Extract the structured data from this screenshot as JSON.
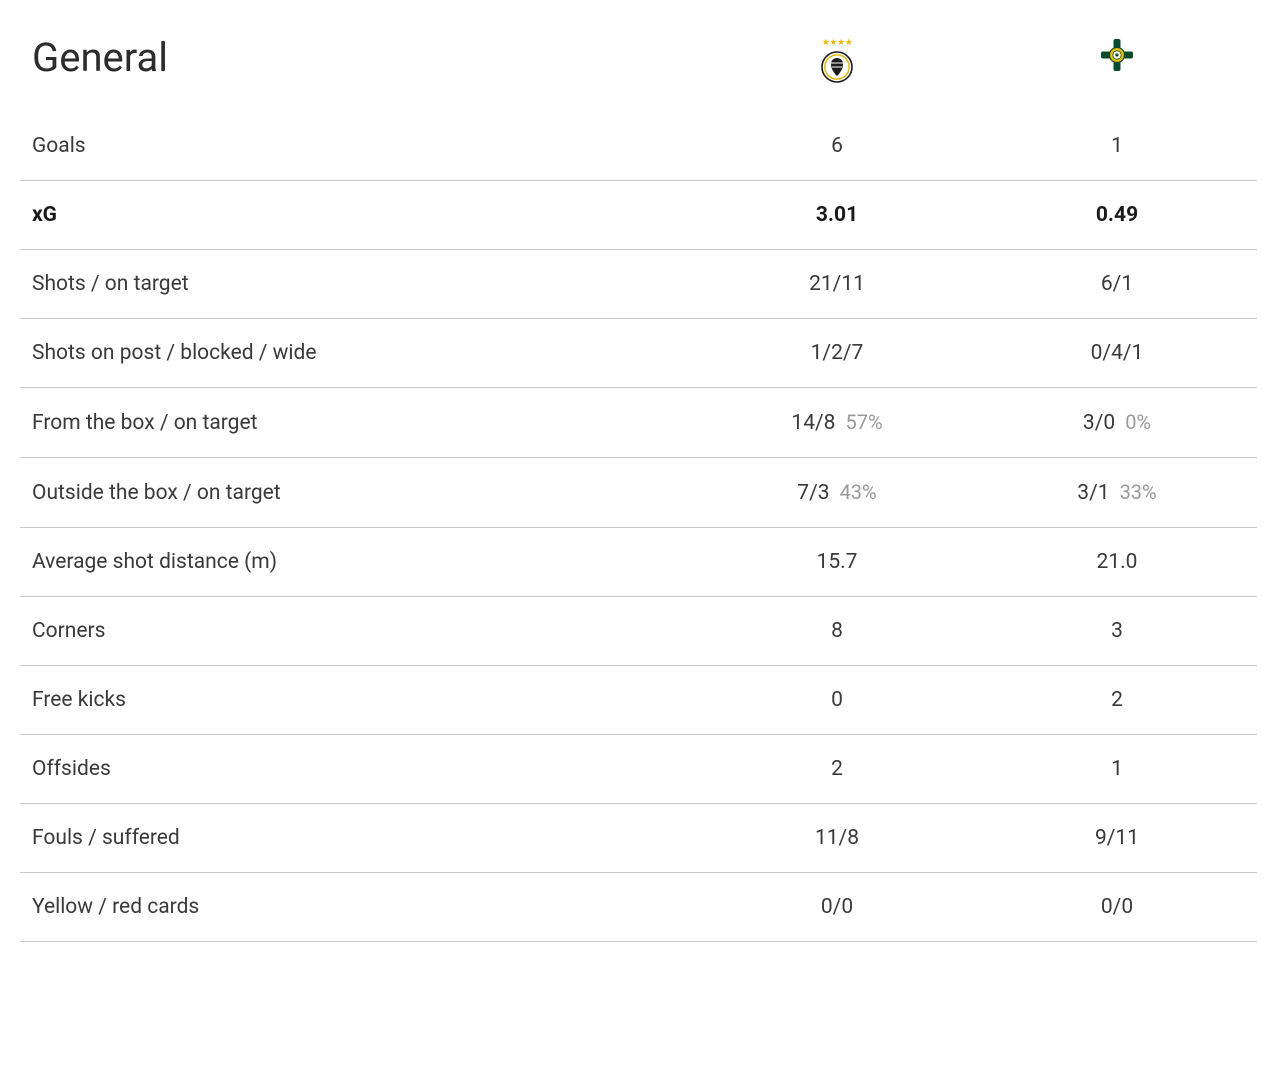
{
  "table": {
    "title": "General",
    "columns": [
      "label",
      "team1",
      "team2"
    ],
    "team1_icon": "germany-logo",
    "team2_icon": "northern-ireland-logo",
    "rows": [
      {
        "label": "Goals",
        "t1": "6",
        "t2": "1",
        "strong": false
      },
      {
        "label": "xG",
        "t1": "3.01",
        "t2": "0.49",
        "strong": true
      },
      {
        "label": "Shots / on target",
        "t1": "21/11",
        "t2": "6/1",
        "strong": false
      },
      {
        "label": "Shots on post / blocked / wide",
        "t1": "1/2/7",
        "t2": "0/4/1",
        "strong": false
      },
      {
        "label": "From the box / on target",
        "t1": "14/8",
        "t1_pct": "57%",
        "t2": "3/0",
        "t2_pct": "0%",
        "strong": false
      },
      {
        "label": "Outside the box / on target",
        "t1": "7/3",
        "t1_pct": "43%",
        "t2": "3/1",
        "t2_pct": "33%",
        "strong": false
      },
      {
        "label": "Average shot distance (m)",
        "t1": "15.7",
        "t2": "21.0",
        "strong": false
      },
      {
        "label": "Corners",
        "t1": "8",
        "t2": "3",
        "strong": false
      },
      {
        "label": "Free kicks",
        "t1": "0",
        "t2": "2",
        "strong": false
      },
      {
        "label": "Offsides",
        "t1": "2",
        "t2": "1",
        "strong": false
      },
      {
        "label": "Fouls / suffered",
        "t1": "11/8",
        "t2": "9/11",
        "strong": false
      },
      {
        "label": "Yellow / red cards",
        "t1": "0/0",
        "t2": "0/0",
        "strong": false
      }
    ]
  },
  "style": {
    "background_color": "#ffffff",
    "text_color": "#3a3a3a",
    "strong_text_color": "#1a1a1a",
    "pct_color": "#9a9a9a",
    "border_color": "#c9c9c9",
    "title_fontsize": 40,
    "cell_fontsize": 21,
    "pct_fontsize": 20,
    "row_padding_v": 22,
    "value_col_width": 280,
    "logo_size": 34,
    "germany_stars_color": "#f3b700",
    "germany_colors": {
      "ring": "#1b1b1b",
      "fill": "#ffffff",
      "accent": "#e2b300"
    },
    "nireland_colors": {
      "cross": "#0a4b2c",
      "center": "#f2c100",
      "ring": "#0a4b2c"
    }
  }
}
